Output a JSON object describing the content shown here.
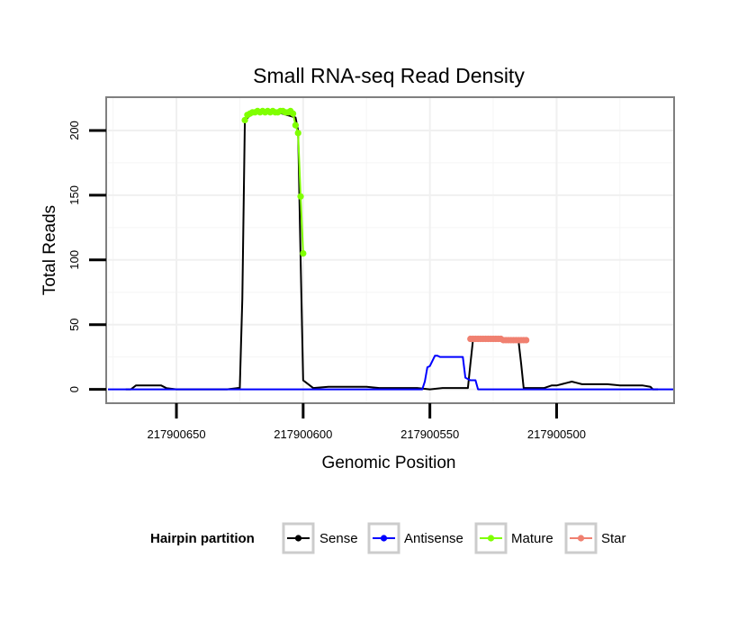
{
  "chart_data": {
    "type": "line",
    "title": "Small RNA-seq Read Density",
    "xlabel": "Genomic Position",
    "ylabel": "Total Reads",
    "xlim": [
      217900677,
      217900454
    ],
    "ylim": [
      -10,
      225
    ],
    "x_reversed": true,
    "x_ticks": [
      217900650,
      217900600,
      217900550,
      217900500
    ],
    "x_tick_labels": [
      "217900650",
      "217900600",
      "217900550",
      "217900500"
    ],
    "y_ticks": [
      0,
      50,
      100,
      150,
      200
    ],
    "y_tick_labels": [
      "0",
      "50",
      "100",
      "150",
      "200"
    ],
    "grid": true,
    "legend": {
      "title": "Hairpin partition",
      "position": "bottom",
      "entries": [
        {
          "name": "Sense",
          "color": "#000000"
        },
        {
          "name": "Antisense",
          "color": "#0000ff"
        },
        {
          "name": "Mature",
          "color": "#7fff00"
        },
        {
          "name": "Star",
          "color": "#f08070"
        }
      ]
    },
    "series": [
      {
        "name": "Sense",
        "color": "#000000",
        "markers": false,
        "x": [
          217900670,
          217900668,
          217900666,
          217900660,
          217900656,
          217900654,
          217900650,
          217900640,
          217900630,
          217900626,
          217900625,
          217900624,
          217900623,
          217900620,
          217900610,
          217900603,
          217900602,
          217900601,
          217900600,
          217900596,
          217900590,
          217900580,
          217900575,
          217900570,
          217900565,
          217900560,
          217900555,
          217900550,
          217900545,
          217900540,
          217900535,
          217900534,
          217900533,
          217900530,
          217900520,
          217900515,
          217900514,
          217900513,
          217900510,
          217900505,
          217900502,
          217900500,
          217900498,
          217900496,
          217900494,
          217900492,
          217900490,
          217900485,
          217900480,
          217900475,
          217900470,
          217900466,
          217900463,
          217900462,
          217900460
        ],
        "y": [
          0,
          0,
          3,
          3,
          3,
          1,
          0,
          0,
          0,
          1,
          1,
          70,
          208,
          213,
          214,
          210,
          200,
          100,
          7,
          1,
          2,
          2,
          2,
          1,
          1,
          1,
          1,
          0,
          1,
          1,
          1,
          20,
          38,
          39,
          38,
          37,
          20,
          1,
          1,
          1,
          3,
          3,
          4,
          5,
          6,
          5,
          4,
          4,
          4,
          3,
          3,
          3,
          2,
          0,
          0
        ]
      },
      {
        "name": "Antisense",
        "color": "#0000ff",
        "markers": false,
        "x": [
          217900677,
          217900560,
          217900553,
          217900552,
          217900551,
          217900550,
          217900549,
          217900548,
          217900547,
          217900546,
          217900545,
          217900540,
          217900537,
          217900536,
          217900535,
          217900534,
          217900533,
          217900532,
          217900531,
          217900500,
          217900454
        ],
        "y": [
          0,
          0,
          0,
          6,
          17,
          18,
          22,
          26,
          26,
          25,
          25,
          25,
          25,
          9,
          8,
          7,
          7,
          7,
          0,
          0,
          0
        ]
      },
      {
        "name": "Mature",
        "color": "#7fff00",
        "markers": true,
        "x": [
          217900623,
          217900622,
          217900621,
          217900620,
          217900619,
          217900618,
          217900617,
          217900616,
          217900615,
          217900614,
          217900613,
          217900612,
          217900611,
          217900610,
          217900609,
          217900608,
          217900607,
          217900606,
          217900605,
          217900604,
          217900603,
          217900602,
          217900601,
          217900600
        ],
        "y": [
          208,
          212,
          213,
          214,
          214,
          215,
          214,
          215,
          214,
          215,
          214,
          215,
          214,
          214,
          215,
          215,
          214,
          214,
          215,
          213,
          204,
          198,
          149,
          105
        ]
      },
      {
        "name": "Star",
        "color": "#f08070",
        "markers": true,
        "x": [
          217900534,
          217900533,
          217900532,
          217900531,
          217900530,
          217900529,
          217900528,
          217900527,
          217900526,
          217900525,
          217900524,
          217900523,
          217900522,
          217900521,
          217900520,
          217900519,
          217900518,
          217900517,
          217900516,
          217900515,
          217900514,
          217900513,
          217900512
        ],
        "y": [
          39,
          39,
          39,
          39,
          39,
          39,
          39,
          39,
          39,
          39,
          39,
          39,
          39,
          38,
          38,
          38,
          38,
          38,
          38,
          38,
          38,
          38,
          38
        ]
      }
    ]
  }
}
